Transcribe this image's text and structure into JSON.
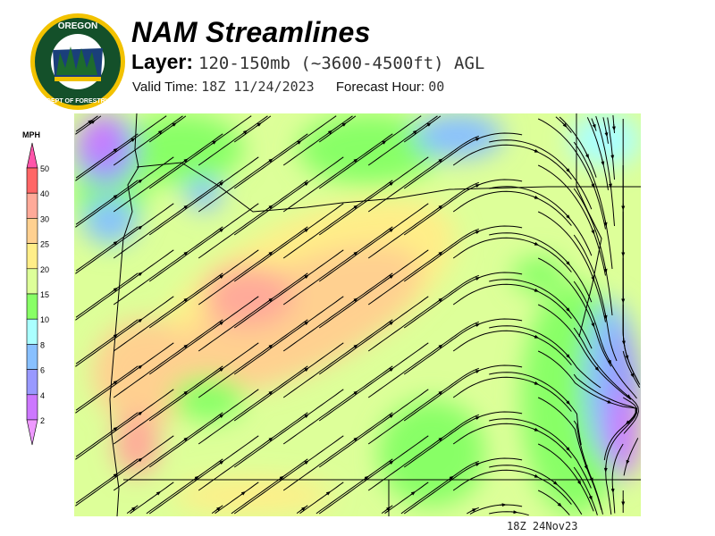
{
  "header": {
    "logo_text_top": "OREGON",
    "logo_text_bottom": "DEPARTMENT OF FORESTRY",
    "title": "NAM Streamlines",
    "layer_label": "Layer:",
    "layer_value": "120-150mb (~3600-4500ft) AGL",
    "valid_label": "Valid Time:",
    "valid_value": "18Z 11/24/2023",
    "forecast_label": "Forecast Hour:",
    "forecast_value": "00"
  },
  "legend": {
    "unit": "MPH",
    "labels": [
      "50",
      "40",
      "30",
      "25",
      "20",
      "15",
      "10",
      "8",
      "6",
      "4",
      "2"
    ],
    "colors": {
      "above_50": "#ff55aa",
      "40-50": "#ff6666",
      "30-40": "#ffaa99",
      "25-30": "#ffd090",
      "20-25": "#ffee88",
      "15-20": "#ddff99",
      "10-15": "#88ff66",
      "8-10": "#aaffff",
      "6-8": "#88c0ff",
      "4-6": "#9999ff",
      "2-4": "#cc77ff",
      "below_2": "#ee99ff"
    }
  },
  "footer": {
    "timestamp": "18Z 24Nov23"
  }
}
